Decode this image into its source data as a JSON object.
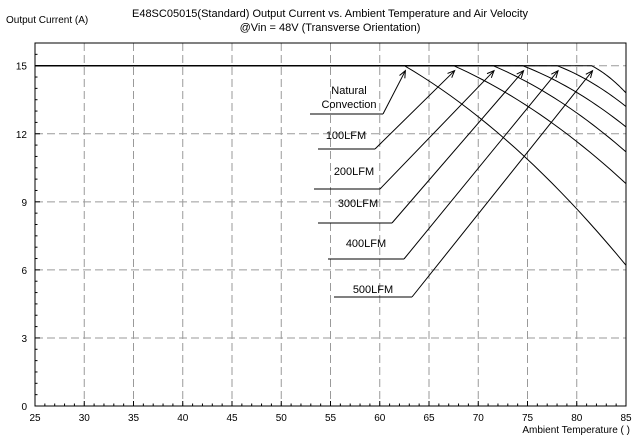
{
  "chart_data": {
    "type": "line",
    "title": "E48SC05015(Standard)  Output Current vs. Ambient Temperature and Air Velocity",
    "subtitle": "@Vin = 48V (Transverse Orientation)",
    "ylabel": "Output Current (A)",
    "xlabel": "Ambient Temperature (    )",
    "xlim": [
      25,
      85
    ],
    "ylim": [
      0,
      16
    ],
    "x_ticks": [
      25,
      30,
      35,
      40,
      45,
      50,
      55,
      60,
      65,
      70,
      75,
      80,
      85
    ],
    "y_ticks": [
      0,
      3,
      6,
      9,
      12,
      15
    ],
    "grid": true,
    "series": [
      {
        "name": "Natural Convection",
        "x": [
          25,
          62.5,
          85
        ],
        "y": [
          15,
          15,
          6.2
        ]
      },
      {
        "name": "100LFM",
        "x": [
          25,
          67.5,
          85
        ],
        "y": [
          15,
          15,
          9.8
        ]
      },
      {
        "name": "200LFM",
        "x": [
          25,
          71.5,
          85
        ],
        "y": [
          15,
          15,
          11.2
        ]
      },
      {
        "name": "300LFM",
        "x": [
          25,
          74.5,
          85
        ],
        "y": [
          15,
          15,
          12.3
        ]
      },
      {
        "name": "400LFM",
        "x": [
          25,
          78.0,
          85
        ],
        "y": [
          15,
          15,
          13.2
        ]
      },
      {
        "name": "500LFM",
        "x": [
          25,
          81.5,
          85
        ],
        "y": [
          15,
          15,
          13.8
        ]
      }
    ],
    "annotations": [
      {
        "lines": [
          "Natural",
          "Convection"
        ],
        "series": 0
      },
      {
        "lines": [
          "100LFM"
        ],
        "series": 1
      },
      {
        "lines": [
          "200LFM"
        ],
        "series": 2
      },
      {
        "lines": [
          "300LFM"
        ],
        "series": 3
      },
      {
        "lines": [
          "400LFM"
        ],
        "series": 4
      },
      {
        "lines": [
          "500LFM"
        ],
        "series": 5
      }
    ]
  }
}
